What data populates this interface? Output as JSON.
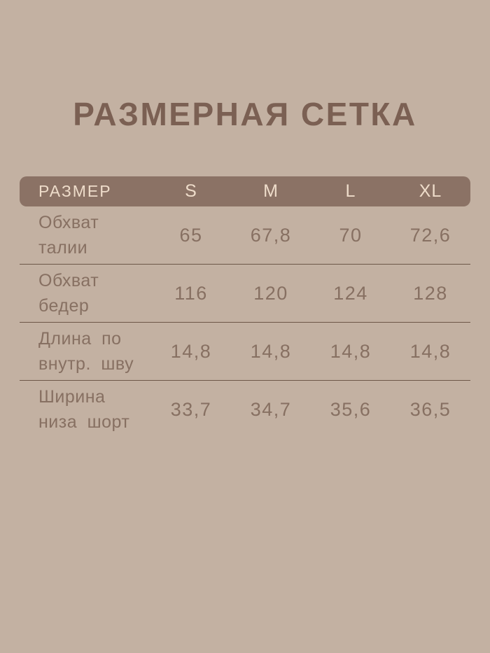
{
  "title": "РАЗМЕРНАЯ СЕТКА",
  "colors": {
    "page_background": "#c3b1a2",
    "header_bar": "#8b7265",
    "header_text": "#eedcca",
    "title_text": "#7b6053",
    "body_text": "#877062",
    "divider": "#6d5748"
  },
  "chart_data": {
    "type": "table",
    "title": "РАЗМЕРНАЯ СЕТКА",
    "columns": [
      "РАЗМЕР",
      "S",
      "M",
      "L",
      "XL"
    ],
    "rows": [
      [
        "Обхват\nталии",
        "65",
        "67,8",
        "70",
        "72,6"
      ],
      [
        "Обхват\nбедер",
        "116",
        "120",
        "124",
        "128"
      ],
      [
        "Длина по\nвнутр. шву",
        "14,8",
        "14,8",
        "14,8",
        "14,8"
      ],
      [
        "Ширина\nниза шорт",
        "33,7",
        "34,7",
        "35,6",
        "36,5"
      ]
    ]
  }
}
